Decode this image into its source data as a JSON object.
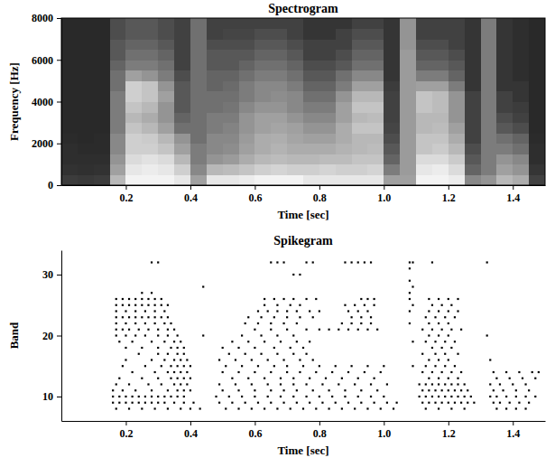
{
  "chart_data": [
    {
      "type": "heatmap",
      "title": "Spectrogram",
      "x_label": "Time [sec]",
      "y_label": "Frequency [Hz]",
      "xlim": [
        0,
        1.5
      ],
      "ylim": [
        0,
        8000
      ],
      "xticks": [
        0.2,
        0.4,
        0.6,
        0.8,
        {
          "value": 1,
          "label": "1.0"
        },
        1.2,
        1.4
      ],
      "yticks": [
        0,
        2000,
        4000,
        6000,
        8000
      ],
      "zlim": [
        0,
        1
      ],
      "x": [
        0,
        0.05,
        0.1,
        0.15,
        0.2,
        0.25,
        0.3,
        0.35,
        0.4,
        0.45,
        0.5,
        0.55,
        0.6,
        0.65,
        0.7,
        0.75,
        0.8,
        0.85,
        0.9,
        0.95,
        1,
        1.05,
        1.1,
        1.15,
        1.2,
        1.25,
        1.3,
        1.35,
        1.4,
        1.45,
        1.5
      ],
      "y": [
        0,
        500,
        1000,
        1500,
        2000,
        2500,
        3000,
        3500,
        4000,
        4500,
        5000,
        5500,
        6000,
        6500,
        7000,
        7500,
        8000
      ],
      "cells": [
        [
          0.18,
          0.14,
          0.12,
          0.12,
          0.11,
          0.1,
          0.1,
          0.1,
          0.1,
          0.1,
          0.1,
          0.1,
          0.1,
          0.1,
          0.1,
          0.1
        ],
        [
          0.17,
          0.13,
          0.12,
          0.11,
          0.1,
          0.1,
          0.1,
          0.1,
          0.1,
          0.1,
          0.1,
          0.1,
          0.1,
          0.1,
          0.1,
          0.1
        ],
        [
          0.18,
          0.14,
          0.12,
          0.11,
          0.11,
          0.1,
          0.1,
          0.1,
          0.1,
          0.1,
          0.1,
          0.1,
          0.1,
          0.1,
          0.1,
          0.1
        ],
        [
          0.7,
          0.6,
          0.55,
          0.5,
          0.5,
          0.45,
          0.45,
          0.45,
          0.45,
          0.4,
          0.4,
          0.35,
          0.3,
          0.3,
          0.25,
          0.25
        ],
        [
          0.95,
          0.9,
          0.85,
          0.8,
          0.8,
          0.75,
          0.7,
          0.75,
          0.8,
          0.8,
          0.6,
          0.45,
          0.4,
          0.35,
          0.3,
          0.3
        ],
        [
          0.95,
          0.92,
          0.88,
          0.8,
          0.78,
          0.7,
          0.65,
          0.7,
          0.75,
          0.75,
          0.55,
          0.45,
          0.4,
          0.35,
          0.3,
          0.3
        ],
        [
          0.95,
          0.9,
          0.85,
          0.75,
          0.7,
          0.6,
          0.55,
          0.55,
          0.6,
          0.55,
          0.45,
          0.4,
          0.35,
          0.3,
          0.25,
          0.25
        ],
        [
          0.9,
          0.8,
          0.7,
          0.6,
          0.55,
          0.4,
          0.35,
          0.3,
          0.3,
          0.3,
          0.25,
          0.2,
          0.2,
          0.2,
          0.2,
          0.2
        ],
        [
          0.6,
          0.5,
          0.45,
          0.45,
          0.4,
          0.4,
          0.4,
          0.4,
          0.4,
          0.4,
          0.4,
          0.4,
          0.4,
          0.4,
          0.4,
          0.4
        ],
        [
          0.9,
          0.7,
          0.55,
          0.5,
          0.5,
          0.45,
          0.45,
          0.4,
          0.4,
          0.35,
          0.35,
          0.3,
          0.3,
          0.25,
          0.2,
          0.2
        ],
        [
          0.9,
          0.72,
          0.58,
          0.52,
          0.5,
          0.48,
          0.45,
          0.42,
          0.4,
          0.38,
          0.35,
          0.3,
          0.3,
          0.25,
          0.22,
          0.2
        ],
        [
          0.92,
          0.75,
          0.65,
          0.6,
          0.58,
          0.55,
          0.55,
          0.5,
          0.45,
          0.45,
          0.4,
          0.35,
          0.3,
          0.25,
          0.22,
          0.2
        ],
        [
          0.95,
          0.8,
          0.7,
          0.65,
          0.65,
          0.6,
          0.6,
          0.55,
          0.5,
          0.5,
          0.45,
          0.4,
          0.35,
          0.3,
          0.25,
          0.2
        ],
        [
          0.95,
          0.82,
          0.72,
          0.68,
          0.66,
          0.62,
          0.6,
          0.55,
          0.52,
          0.5,
          0.45,
          0.4,
          0.35,
          0.3,
          0.25,
          0.2
        ],
        [
          0.95,
          0.8,
          0.7,
          0.65,
          0.62,
          0.6,
          0.55,
          0.5,
          0.5,
          0.45,
          0.4,
          0.35,
          0.3,
          0.25,
          0.2,
          0.2
        ],
        [
          0.9,
          0.8,
          0.7,
          0.65,
          0.6,
          0.55,
          0.5,
          0.45,
          0.4,
          0.35,
          0.3,
          0.25,
          0.2,
          0.2,
          0.15,
          0.15
        ],
        [
          0.9,
          0.82,
          0.72,
          0.65,
          0.6,
          0.55,
          0.5,
          0.45,
          0.4,
          0.35,
          0.3,
          0.25,
          0.2,
          0.2,
          0.15,
          0.15
        ],
        [
          0.9,
          0.8,
          0.72,
          0.68,
          0.65,
          0.65,
          0.6,
          0.6,
          0.55,
          0.45,
          0.4,
          0.3,
          0.25,
          0.2,
          0.2,
          0.15
        ],
        [
          0.9,
          0.8,
          0.75,
          0.7,
          0.7,
          0.75,
          0.7,
          0.75,
          0.7,
          0.6,
          0.5,
          0.4,
          0.35,
          0.3,
          0.25,
          0.2
        ],
        [
          0.9,
          0.82,
          0.75,
          0.72,
          0.7,
          0.75,
          0.72,
          0.75,
          0.7,
          0.6,
          0.5,
          0.4,
          0.35,
          0.3,
          0.25,
          0.2
        ],
        [
          0.6,
          0.45,
          0.35,
          0.3,
          0.25,
          0.22,
          0.2,
          0.2,
          0.2,
          0.18,
          0.15,
          0.15,
          0.15,
          0.15,
          0.15,
          0.15
        ],
        [
          0.6,
          0.58,
          0.58,
          0.58,
          0.58,
          0.58,
          0.58,
          0.58,
          0.58,
          0.58,
          0.58,
          0.58,
          0.58,
          0.55,
          0.55,
          0.55
        ],
        [
          0.95,
          0.9,
          0.85,
          0.75,
          0.75,
          0.7,
          0.7,
          0.75,
          0.75,
          0.6,
          0.45,
          0.35,
          0.3,
          0.25,
          0.2,
          0.2
        ],
        [
          0.95,
          0.92,
          0.85,
          0.78,
          0.75,
          0.72,
          0.7,
          0.72,
          0.72,
          0.6,
          0.45,
          0.35,
          0.3,
          0.25,
          0.2,
          0.2
        ],
        [
          0.92,
          0.85,
          0.78,
          0.7,
          0.65,
          0.6,
          0.55,
          0.55,
          0.55,
          0.45,
          0.35,
          0.3,
          0.25,
          0.2,
          0.2,
          0.2
        ],
        [
          0.5,
          0.35,
          0.3,
          0.25,
          0.2,
          0.2,
          0.2,
          0.2,
          0.2,
          0.15,
          0.15,
          0.15,
          0.15,
          0.15,
          0.15,
          0.15
        ],
        [
          0.55,
          0.45,
          0.45,
          0.45,
          0.45,
          0.45,
          0.45,
          0.45,
          0.45,
          0.45,
          0.45,
          0.45,
          0.45,
          0.45,
          0.45,
          0.45
        ],
        [
          0.7,
          0.6,
          0.55,
          0.45,
          0.4,
          0.3,
          0.25,
          0.2,
          0.2,
          0.15,
          0.15,
          0.15,
          0.15,
          0.15,
          0.15,
          0.15
        ],
        [
          0.65,
          0.55,
          0.5,
          0.4,
          0.35,
          0.25,
          0.2,
          0.18,
          0.15,
          0.15,
          0.12,
          0.12,
          0.12,
          0.12,
          0.12,
          0.12
        ],
        [
          0.2,
          0.15,
          0.12,
          0.12,
          0.11,
          0.1,
          0.1,
          0.1,
          0.1,
          0.1,
          0.1,
          0.1,
          0.1,
          0.1,
          0.1,
          0.1
        ]
      ]
    },
    {
      "type": "raster",
      "title": "Spikegram",
      "x_label": "Time [sec]",
      "y_label": "Band",
      "xlim": [
        0,
        1.5
      ],
      "ylim": [
        6,
        34
      ],
      "xticks": [
        0.2,
        0.4,
        0.6,
        0.8,
        {
          "value": 1,
          "label": "1.0"
        },
        1.2,
        1.4
      ],
      "yticks": [
        10,
        20,
        30
      ],
      "color": "#000000",
      "bands": [
        8,
        9,
        10,
        11,
        12,
        13,
        14,
        15,
        16,
        17,
        18,
        19,
        20,
        21,
        22,
        23,
        24,
        25,
        26,
        27,
        28,
        29,
        30,
        31,
        32
      ],
      "spike_times": [
        [
          0.17,
          0.21,
          0.25,
          0.29,
          0.33,
          0.37,
          0.4,
          0.43,
          0.51,
          0.55,
          0.59,
          0.63,
          0.67,
          0.71,
          0.75,
          0.79,
          0.83,
          0.87,
          0.91,
          0.95,
          0.99,
          1.03,
          1.13,
          1.17,
          1.21,
          1.25,
          1.35,
          1.38,
          1.41,
          1.44
        ],
        [
          0.16,
          0.18,
          0.2,
          0.22,
          0.24,
          0.26,
          0.28,
          0.3,
          0.32,
          0.35,
          0.38,
          0.41,
          0.49,
          0.53,
          0.57,
          0.61,
          0.65,
          0.69,
          0.73,
          0.77,
          0.81,
          0.85,
          0.89,
          0.93,
          0.97,
          1.01,
          1.04,
          1.12,
          1.14,
          1.16,
          1.18,
          1.2,
          1.22,
          1.24,
          1.26,
          1.28,
          1.34,
          1.36,
          1.39,
          1.42,
          1.45
        ],
        [
          0.16,
          0.18,
          0.2,
          0.22,
          0.24,
          0.26,
          0.28,
          0.3,
          0.32,
          0.34,
          0.36,
          0.38,
          0.48,
          0.52,
          0.56,
          0.6,
          0.64,
          0.68,
          0.72,
          0.76,
          0.8,
          0.84,
          0.88,
          0.92,
          0.96,
          1.0,
          1.11,
          1.13,
          1.15,
          1.17,
          1.19,
          1.21,
          1.23,
          1.25,
          1.27,
          1.33,
          1.35,
          1.38,
          1.41,
          1.44,
          1.47
        ],
        [
          0.16,
          0.19,
          0.23,
          0.28,
          0.33,
          0.36,
          0.38,
          0.4,
          0.5,
          0.55,
          0.6,
          0.65,
          0.69,
          0.73,
          0.78,
          0.83,
          0.88,
          0.93,
          0.98,
          1.12,
          1.14,
          1.16,
          1.18,
          1.2,
          1.22,
          1.24,
          1.26,
          1.34,
          1.37,
          1.41,
          1.45
        ],
        [
          0.17,
          0.21,
          0.27,
          0.31,
          0.35,
          0.37,
          0.39,
          0.49,
          0.54,
          0.59,
          0.64,
          0.68,
          0.72,
          0.76,
          0.81,
          0.86,
          0.91,
          0.96,
          1.01,
          1.11,
          1.13,
          1.15,
          1.17,
          1.19,
          1.21,
          1.23,
          1.25,
          1.33,
          1.36,
          1.4,
          1.44
        ],
        [
          0.18,
          0.25,
          0.3,
          0.34,
          0.36,
          0.38,
          0.4,
          0.53,
          0.58,
          0.63,
          0.68,
          0.72,
          0.77,
          0.82,
          0.87,
          0.92,
          0.97,
          1.14,
          1.17,
          1.2,
          1.23,
          1.35,
          1.39,
          1.43,
          1.47
        ],
        [
          0.22,
          0.29,
          0.33,
          0.35,
          0.37,
          0.39,
          0.5,
          0.55,
          0.6,
          0.65,
          0.7,
          0.74,
          0.79,
          0.84,
          0.89,
          0.94,
          0.99,
          1.12,
          1.15,
          1.18,
          1.21,
          1.24,
          1.34,
          1.38,
          1.42,
          1.46,
          1.48
        ],
        [
          0.19,
          0.26,
          0.31,
          0.34,
          0.36,
          0.38,
          0.4,
          0.51,
          0.56,
          0.61,
          0.66,
          0.7,
          0.75,
          0.8,
          0.85,
          0.9,
          0.95,
          1.0,
          1.09,
          1.13,
          1.16,
          1.19,
          1.22
        ],
        [
          0.2,
          0.28,
          0.32,
          0.35,
          0.37,
          0.39,
          0.49,
          0.54,
          0.59,
          0.64,
          0.69,
          0.74,
          0.78,
          1.14,
          1.17,
          1.2,
          1.33
        ],
        [
          0.24,
          0.3,
          0.33,
          0.36,
          0.38,
          0.52,
          0.57,
          0.62,
          0.67,
          0.72,
          0.76,
          1.12,
          1.16,
          1.19,
          1.23
        ],
        [
          0.2,
          0.25,
          0.3,
          0.34,
          0.36,
          0.38,
          0.5,
          0.55,
          0.6,
          0.66,
          0.71,
          0.75,
          1.15,
          1.18,
          1.21
        ],
        [
          0.18,
          0.22,
          0.28,
          0.32,
          0.35,
          0.37,
          0.53,
          0.58,
          0.63,
          0.68,
          0.73,
          0.77,
          1.09,
          1.13,
          1.16,
          1.19,
          1.22
        ],
        [
          0.17,
          0.2,
          0.23,
          0.26,
          0.3,
          0.33,
          0.36,
          0.44,
          0.56,
          0.62,
          0.67,
          0.72,
          1.14,
          1.17,
          1.2,
          1.32
        ],
        [
          0.17,
          0.19,
          0.21,
          0.24,
          0.27,
          0.3,
          0.33,
          0.35,
          0.6,
          0.65,
          0.7,
          0.76,
          0.8,
          0.83,
          0.86,
          0.89,
          0.92,
          0.95,
          0.98,
          1.12,
          1.15,
          1.18,
          1.21,
          1.24
        ],
        [
          0.17,
          0.2,
          0.23,
          0.26,
          0.29,
          0.32,
          0.34,
          0.57,
          0.61,
          0.65,
          0.69,
          0.73,
          0.87,
          0.9,
          0.93,
          0.96,
          1.08,
          1.14,
          1.17,
          1.2
        ],
        [
          0.17,
          0.19,
          0.21,
          0.23,
          0.25,
          0.27,
          0.29,
          0.31,
          0.33,
          0.58,
          0.62,
          0.66,
          0.7,
          0.74,
          0.78,
          0.9,
          0.93,
          0.96,
          1.13,
          1.16,
          1.19,
          1.22
        ],
        [
          0.17,
          0.2,
          0.23,
          0.26,
          0.29,
          0.32,
          0.61,
          0.64,
          0.67,
          0.7,
          0.73,
          0.77,
          0.8,
          0.89,
          0.92,
          0.95,
          1.08,
          1.14,
          1.17,
          1.2,
          1.23
        ],
        [
          0.17,
          0.19,
          0.21,
          0.23,
          0.25,
          0.27,
          0.29,
          0.31,
          0.33,
          0.63,
          0.67,
          0.71,
          0.74,
          0.88,
          0.91,
          0.94,
          0.97,
          1.09,
          1.15,
          1.18,
          1.21
        ],
        [
          0.17,
          0.19,
          0.21,
          0.23,
          0.25,
          0.27,
          0.29,
          0.31,
          0.63,
          0.66,
          0.69,
          0.72,
          0.76,
          0.79,
          0.93,
          0.95,
          0.97,
          1.08,
          1.14,
          1.17,
          1.2,
          1.23
        ],
        [
          0.25,
          0.28,
          1.08
        ],
        [
          0.44,
          1.09
        ],
        [
          1.08
        ],
        [
          0.72,
          0.74
        ],
        [
          1.08
        ],
        [
          0.28,
          0.3,
          0.65,
          0.67,
          0.69,
          0.76,
          0.78,
          0.88,
          0.9,
          0.92,
          0.94,
          0.96,
          1.08,
          1.09,
          1.15,
          1.32
        ]
      ]
    }
  ]
}
